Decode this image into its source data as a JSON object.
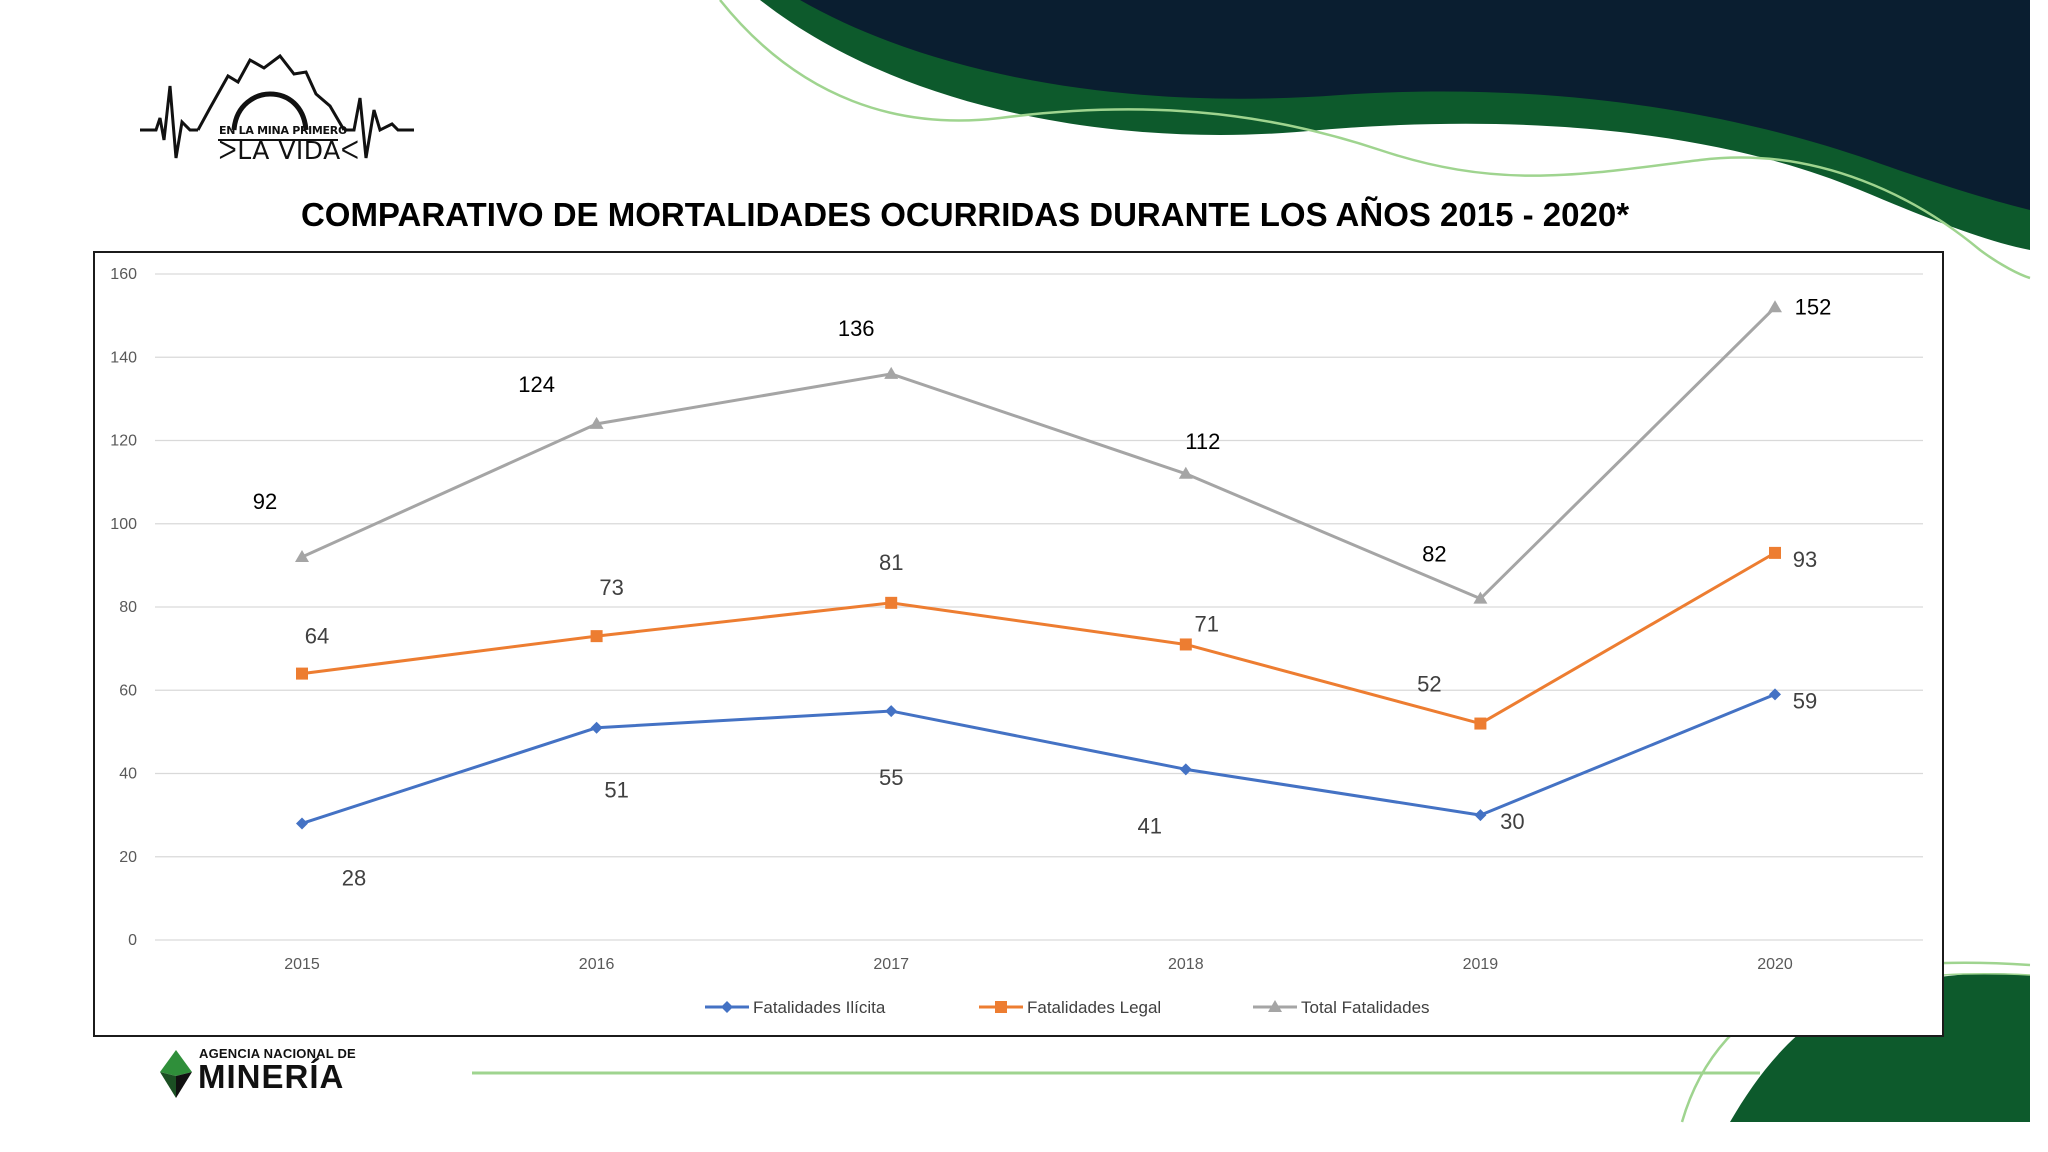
{
  "header": {
    "logo_line1": "EN LA MINA PRIMERO",
    "logo_line2": "ᐳLA VIDAᐸ",
    "title": "COMPARATIVO DE MORTALIDADES OCURRIDAS DURANTE LOS AÑOS 2015 - 2020*"
  },
  "footer": {
    "agency_small": "AGENCIA NACIONAL DE",
    "agency_big": "MINERÍA"
  },
  "colors": {
    "dark_navy": "#0a1e30",
    "dark_green": "#0d5a2c",
    "light_green": "#9fd48f",
    "series_blue": "#4472c4",
    "series_orange": "#ed7d31",
    "series_gray": "#a5a5a5"
  },
  "chart_data": {
    "type": "line",
    "title": "",
    "xlabel": "",
    "ylabel": "",
    "x": [
      "2015",
      "2016",
      "2017",
      "2018",
      "2019",
      "2020"
    ],
    "ylim": [
      0,
      160
    ],
    "yticks": [
      "0",
      "20",
      "40",
      "60",
      "80",
      "100",
      "120",
      "140",
      "160"
    ],
    "grid": true,
    "legend_position": "bottom",
    "series": [
      {
        "name": "Fatalidades Ilícita",
        "color": "#4472c4",
        "marker": "diamond",
        "values": [
          28,
          51,
          55,
          41,
          30,
          59
        ]
      },
      {
        "name": "Fatalidades Legal",
        "color": "#ed7d31",
        "marker": "square",
        "values": [
          64,
          73,
          81,
          71,
          52,
          93
        ]
      },
      {
        "name": "Total Fatalidades",
        "color": "#a5a5a5",
        "marker": "triangle",
        "values": [
          92,
          124,
          136,
          112,
          82,
          152
        ]
      }
    ]
  }
}
